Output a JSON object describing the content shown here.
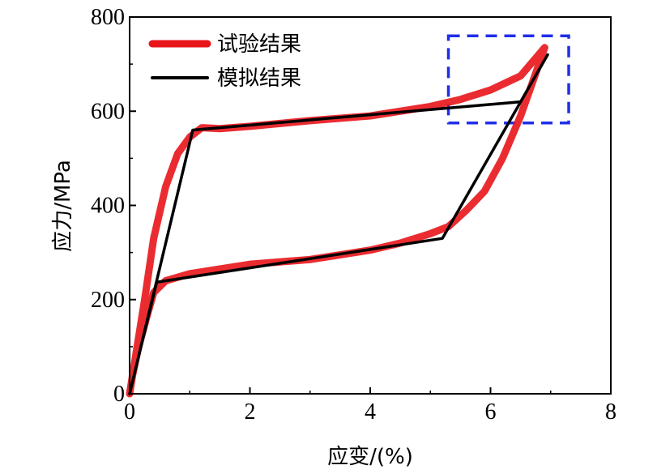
{
  "chart_data": {
    "type": "line",
    "xlabel": "应变/(%)",
    "ylabel": "应力/MPa",
    "xlim": [
      0,
      8
    ],
    "ylim": [
      0,
      800
    ],
    "xticks": [
      0,
      2,
      4,
      6,
      8
    ],
    "yticks": [
      0,
      200,
      400,
      600,
      800
    ],
    "grid": false,
    "legend_position": "top-left",
    "series": [
      {
        "name": "试验结果",
        "color": "#e8151b",
        "style": "thick",
        "x": [
          0,
          0.1,
          0.25,
          0.4,
          0.6,
          0.8,
          1.0,
          1.2,
          1.5,
          2.0,
          3.0,
          4.0,
          5.0,
          5.5,
          6.0,
          6.5,
          6.9,
          6.75,
          6.5,
          6.2,
          5.9,
          5.6,
          5.3,
          5.0,
          4.5,
          4.0,
          3.0,
          2.0,
          1.0,
          0.6,
          0.4,
          0.3,
          0.15,
          0.05,
          0
        ],
        "y": [
          0,
          80,
          200,
          330,
          440,
          510,
          545,
          565,
          563,
          568,
          580,
          590,
          610,
          625,
          645,
          675,
          735,
          680,
          590,
          500,
          430,
          390,
          355,
          340,
          320,
          305,
          285,
          275,
          255,
          240,
          215,
          170,
          100,
          40,
          0
        ]
      },
      {
        "name": "模拟结果",
        "color": "#000000",
        "style": "thin",
        "x": [
          0,
          1.05,
          6.5,
          6.95,
          5.2,
          0.45,
          0
        ],
        "y": [
          0,
          560,
          620,
          720,
          330,
          237,
          0
        ]
      }
    ],
    "highlight_box": {
      "x": [
        5.3,
        7.3
      ],
      "y": [
        575,
        760
      ],
      "color": "#1f2ee8"
    }
  }
}
